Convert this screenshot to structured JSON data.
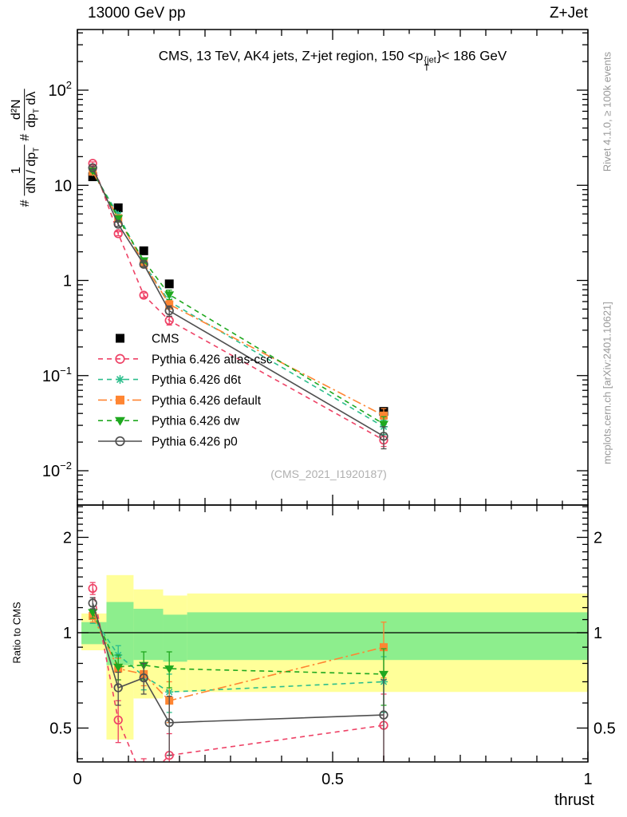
{
  "header": {
    "beam": "13000 GeV pp",
    "process": "Z+Jet"
  },
  "title": {
    "prefix": "CMS, 13 TeV, AK4 jets, Z+jet region, 150 <p",
    "sup": "{jet",
    "sub": "T",
    "suffix": "}< 186 GeV"
  },
  "y_axis_label_parts": {
    "hash1": "#",
    "frac1_num": "1",
    "frac1_den": "dN / dp",
    "frac1_den_sub": "T",
    "hash2": "#",
    "frac2_num": "d²N",
    "frac2_den": "dp",
    "frac2_den_sub": "T",
    "frac2_den_tail": " dλ"
  },
  "ratio_axis_label": "Ratio to CMS",
  "credits": {
    "rivet": "Rivet 4.1.0, ≥ 100k events",
    "mcplots": "mcplots.cern.ch [arXiv:2401.10621]"
  },
  "watermark": "(CMS_2021_I1920187)",
  "chart_data": {
    "type": "line",
    "title": "CMS, 13 TeV, AK4 jets, Z+jet region, 150 < p_T^{jet} < 186 GeV",
    "xlabel": "thrust",
    "ylabel": "# 1/(dN/dp_T) # d²N/(dp_T dλ)",
    "top_left": "13000 GeV pp",
    "top_right": "Z+Jet",
    "x": [
      0.03,
      0.08,
      0.13,
      0.18,
      0.6
    ],
    "xlim": [
      0,
      1
    ],
    "xticks": [
      {
        "v": 0,
        "label": "0"
      },
      {
        "v": 0.5,
        "label": "0.5"
      },
      {
        "v": 1,
        "label": "1"
      }
    ],
    "legend_position": "inside-left",
    "main": {
      "yscale": "log",
      "ylim": [
        0.0044,
        430
      ],
      "yticks": [
        {
          "v": 100,
          "base": "10",
          "exp": "2"
        },
        {
          "v": 10,
          "base": "10",
          "exp": ""
        },
        {
          "v": 1,
          "base": "1",
          "exp": ""
        },
        {
          "v": 0.1,
          "base": "10",
          "exp": "−1"
        },
        {
          "v": 0.01,
          "base": "10",
          "exp": "−2"
        }
      ],
      "series": [
        {
          "name": "CMS",
          "color": "#000000",
          "marker": "filled-square",
          "line": "none",
          "values": [
            12.3,
            5.8,
            2.05,
            0.92,
            0.042
          ],
          "errors": [
            0.5,
            0.25,
            0.09,
            0.05,
            0.004
          ]
        },
        {
          "name": "Pythia 6.426 atlas-csc",
          "color": "#ee4266",
          "marker": "open-circle",
          "line": "dashed",
          "values": [
            17.0,
            3.1,
            0.7,
            0.38,
            0.021
          ],
          "errors": [
            0.6,
            0.15,
            0.04,
            0.04,
            0.003
          ]
        },
        {
          "name": "Pythia 6.426 d6t",
          "color": "#2dbe8c",
          "marker": "asterisk",
          "line": "dashed",
          "values": [
            13.8,
            4.9,
            1.5,
            0.6,
            0.029
          ],
          "errors": [
            0.5,
            0.2,
            0.08,
            0.07,
            0.005
          ]
        },
        {
          "name": "Pythia 6.426 default",
          "color": "#ff8532",
          "marker": "filled-square",
          "line": "dash-dot",
          "values": [
            13.9,
            4.5,
            1.52,
            0.56,
            0.038
          ],
          "errors": [
            0.5,
            0.2,
            0.08,
            0.06,
            0.007
          ]
        },
        {
          "name": "Pythia 6.426 dw",
          "color": "#1fa81f",
          "marker": "filled-triangle-down",
          "line": "dashed",
          "values": [
            14.3,
            4.5,
            1.62,
            0.71,
            0.031
          ],
          "errors": [
            0.5,
            0.2,
            0.09,
            0.08,
            0.006
          ]
        },
        {
          "name": "Pythia 6.426 p0",
          "color": "#4f4f4f",
          "marker": "open-circle",
          "line": "solid",
          "values": [
            15.3,
            3.9,
            1.48,
            0.48,
            0.023
          ],
          "errors": [
            0.6,
            0.2,
            0.08,
            0.06,
            0.006
          ]
        }
      ]
    },
    "ratio": {
      "yscale": "log",
      "ylim": [
        0.39,
        2.55
      ],
      "reference": 1,
      "ylabel": "Ratio to CMS",
      "yticks": [
        {
          "v": 2,
          "label": "2"
        },
        {
          "v": 1,
          "label": "1"
        },
        {
          "v": 0.5,
          "label": "0.5"
        }
      ],
      "bands": {
        "yellow_color": "#ffff99",
        "green_color": "#8dee8d",
        "bins": [
          {
            "x0": 0.008,
            "x1": 0.057,
            "yellow": [
              0.88,
              1.15
            ],
            "green": [
              0.92,
              1.08
            ]
          },
          {
            "x0": 0.057,
            "x1": 0.11,
            "yellow": [
              0.46,
              1.52
            ],
            "green": [
              0.79,
              1.25
            ]
          },
          {
            "x0": 0.11,
            "x1": 0.168,
            "yellow": [
              0.62,
              1.37
            ],
            "green": [
              0.82,
              1.19
            ]
          },
          {
            "x0": 0.168,
            "x1": 0.215,
            "yellow": [
              0.65,
              1.31
            ],
            "green": [
              0.81,
              1.14
            ]
          },
          {
            "x0": 0.215,
            "x1": 1.0,
            "yellow": [
              0.65,
              1.33
            ],
            "green": [
              0.82,
              1.16
            ]
          }
        ]
      },
      "series": [
        {
          "name": "Pythia 6.426 atlas-csc",
          "color": "#ee4266",
          "marker": "open-circle",
          "line": "dashed",
          "values": [
            1.38,
            0.53,
            0.34,
            0.41,
            0.51
          ],
          "errors": [
            0.06,
            0.08,
            0.06,
            0.07,
            0.13
          ]
        },
        {
          "name": "Pythia 6.426 d6t",
          "color": "#2dbe8c",
          "marker": "asterisk",
          "line": "dashed",
          "values": [
            1.12,
            0.85,
            0.73,
            0.65,
            0.7
          ],
          "errors": [
            0.05,
            0.06,
            0.07,
            0.09,
            0.14
          ]
        },
        {
          "name": "Pythia 6.426 default",
          "color": "#ff8532",
          "marker": "filled-square",
          "line": "dash-dot",
          "values": [
            1.13,
            0.77,
            0.74,
            0.61,
            0.9
          ],
          "errors": [
            0.05,
            0.06,
            0.06,
            0.09,
            0.18
          ]
        },
        {
          "name": "Pythia 6.426 dw",
          "color": "#1fa81f",
          "marker": "filled-triangle-down",
          "line": "dashed",
          "values": [
            1.16,
            0.78,
            0.79,
            0.77,
            0.74
          ],
          "errors": [
            0.05,
            0.07,
            0.08,
            0.1,
            0.15
          ]
        },
        {
          "name": "Pythia 6.426 p0",
          "color": "#4f4f4f",
          "marker": "open-circle",
          "line": "solid",
          "values": [
            1.24,
            0.67,
            0.72,
            0.52,
            0.55
          ],
          "errors": [
            0.05,
            0.08,
            0.08,
            0.11,
            0.16
          ]
        }
      ]
    }
  }
}
